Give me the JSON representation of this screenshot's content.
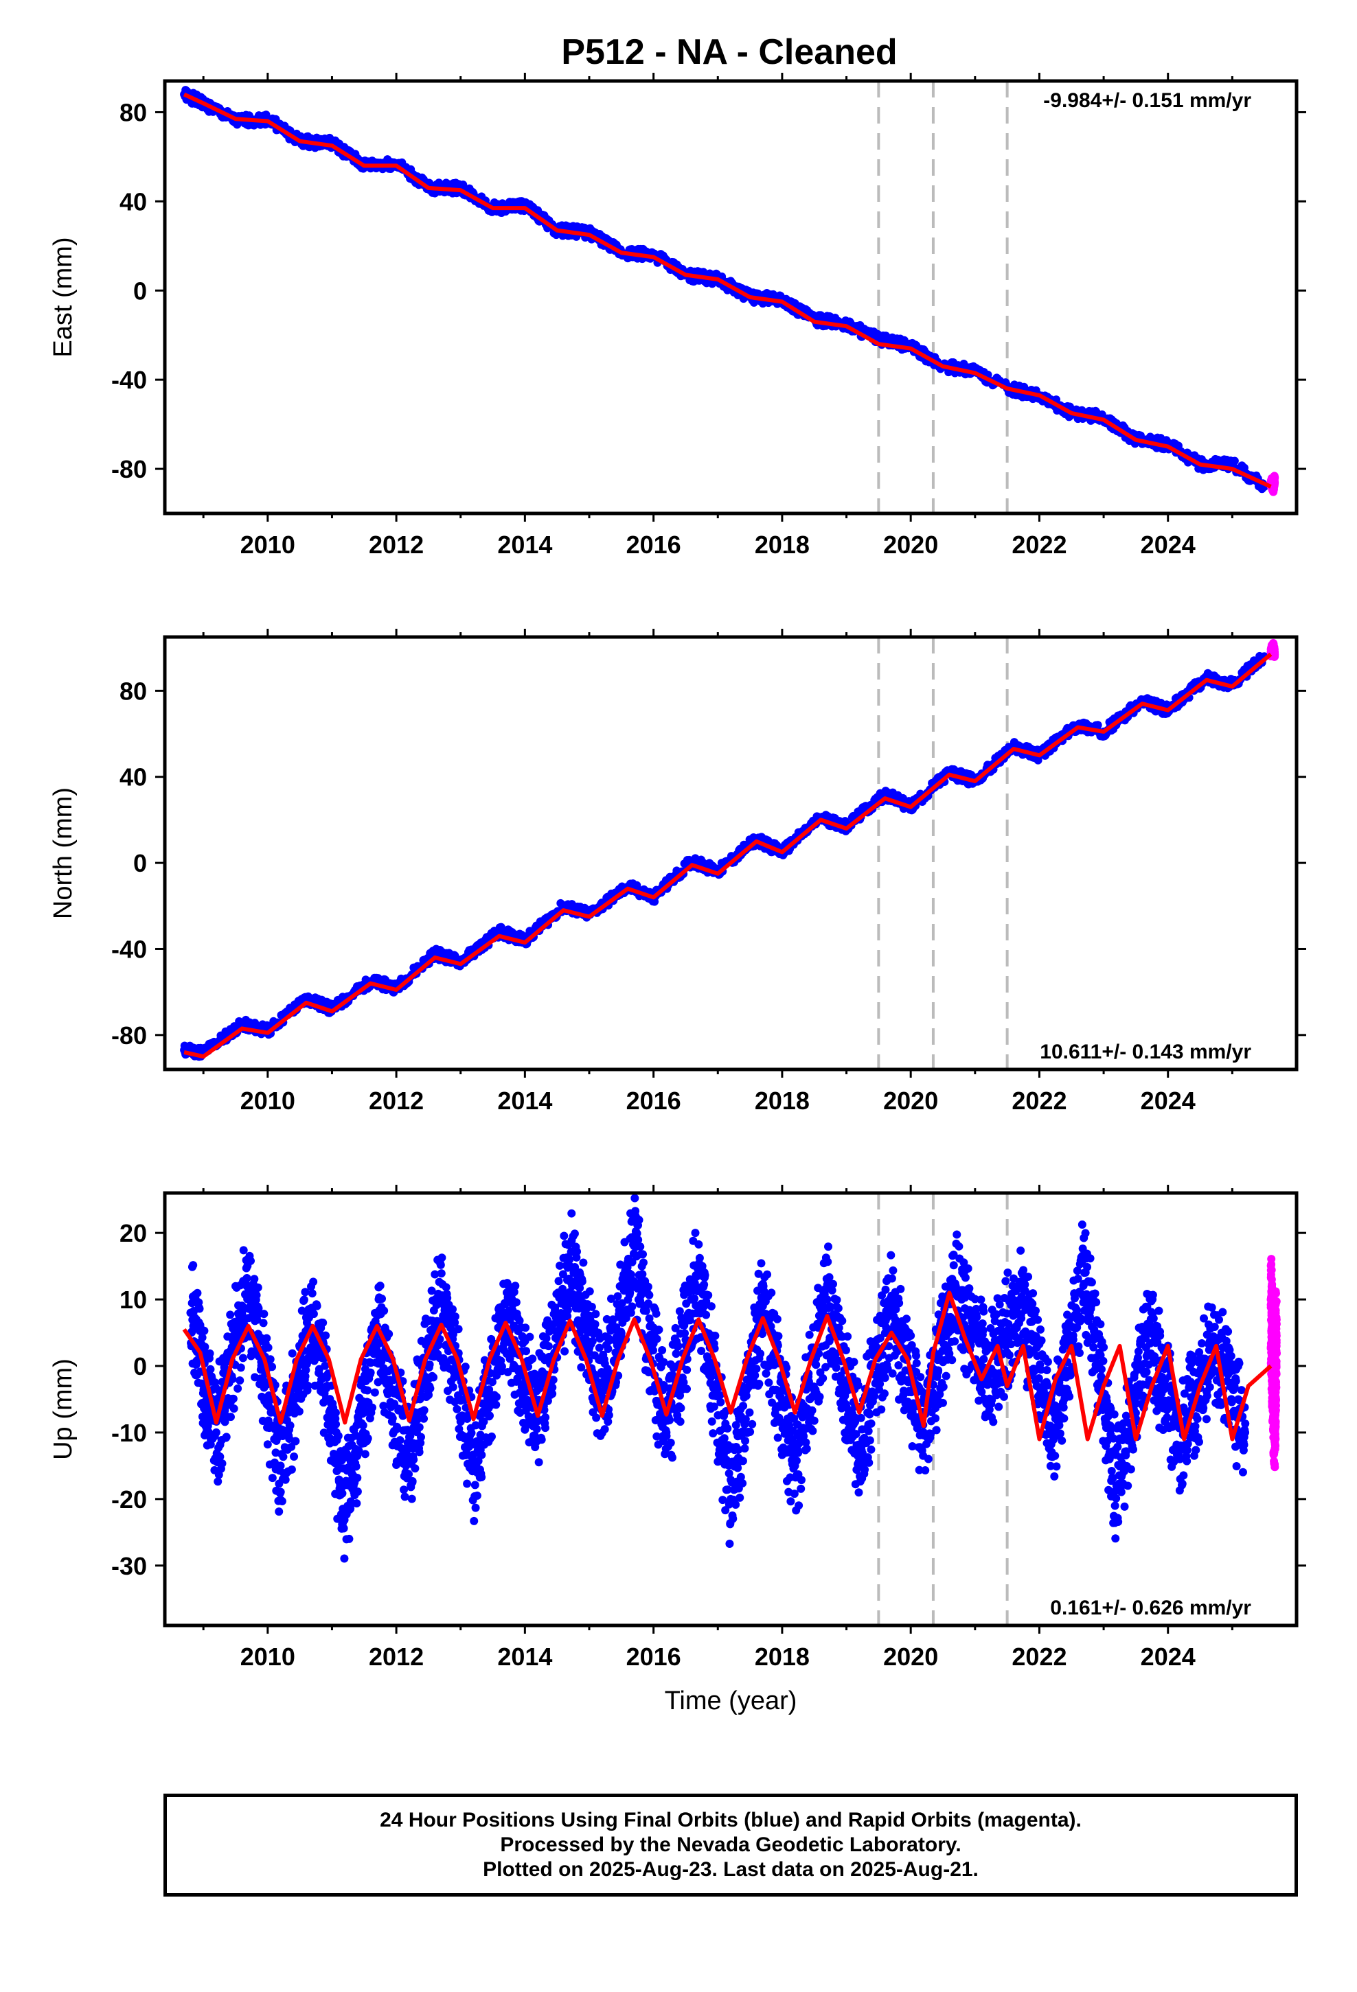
{
  "title": "P512  - NA - Cleaned",
  "colors": {
    "final_orbits": "#0000ff",
    "rapid_orbits": "#ff00ff",
    "model_fit": "#ff0000",
    "event_lines": "#bbbbbb",
    "frame": "#000000"
  },
  "chart_data": [
    {
      "type": "scatter",
      "panel": "east",
      "ylabel": "East (mm)",
      "xlabel": "",
      "xlim": [
        2008.4,
        2026.0
      ],
      "ylim": [
        -100,
        94
      ],
      "xticks": [
        2010,
        2012,
        2014,
        2016,
        2018,
        2020,
        2022,
        2024
      ],
      "yticks": [
        80,
        40,
        0,
        -40,
        -80
      ],
      "rate_label": "-9.984+/- 0.151 mm/yr",
      "rate_label_position": "top-right",
      "series": [
        {
          "name": "Final Orbits",
          "color": "blue",
          "x": [
            2008.7,
            2009.0,
            2009.5,
            2010.0,
            2010.5,
            2011.0,
            2011.5,
            2012.0,
            2012.5,
            2013.0,
            2013.5,
            2014.0,
            2014.5,
            2015.0,
            2015.5,
            2016.0,
            2016.5,
            2017.0,
            2017.5,
            2018.0,
            2018.5,
            2019.0,
            2019.5,
            2020.0,
            2020.5,
            2021.0,
            2021.5,
            2022.0,
            2022.5,
            2023.0,
            2023.5,
            2024.0,
            2024.5,
            2025.0,
            2025.5
          ],
          "y": [
            88,
            84,
            76,
            77,
            67,
            66,
            56,
            57,
            46,
            46,
            37,
            38,
            27,
            26,
            17,
            16,
            7,
            5,
            -3,
            -4,
            -13,
            -15,
            -22,
            -25,
            -34,
            -36,
            -44,
            -47,
            -55,
            -57,
            -67,
            -69,
            -78,
            -78,
            -88
          ]
        },
        {
          "name": "Rapid Orbits",
          "color": "magenta",
          "x": [
            2025.6,
            2025.64,
            2025.66
          ],
          "y": [
            -86,
            -88,
            -84
          ]
        }
      ],
      "fit": {
        "x": [
          2008.7,
          2009.0,
          2009.5,
          2010.0,
          2010.5,
          2011.0,
          2011.5,
          2012.0,
          2012.5,
          2013.0,
          2013.5,
          2014.0,
          2014.5,
          2015.0,
          2015.5,
          2016.0,
          2016.5,
          2017.0,
          2017.5,
          2018.0,
          2018.5,
          2019.0,
          2019.5,
          2020.0,
          2020.5,
          2021.0,
          2021.5,
          2022.0,
          2022.5,
          2023.0,
          2023.5,
          2024.0,
          2024.5,
          2025.0,
          2025.6
        ],
        "y": [
          88,
          84,
          77,
          76,
          67,
          65,
          56,
          56,
          46,
          45,
          37,
          37,
          27,
          25,
          17,
          15,
          7,
          5,
          -3,
          -5,
          -14,
          -16,
          -24,
          -26,
          -34,
          -37,
          -44,
          -47,
          -55,
          -58,
          -67,
          -70,
          -78,
          -80,
          -88
        ]
      },
      "event_lines": [
        2019.5,
        2020.35,
        2021.5
      ]
    },
    {
      "type": "scatter",
      "panel": "north",
      "ylabel": "North (mm)",
      "xlabel": "",
      "xlim": [
        2008.4,
        2026.0
      ],
      "ylim": [
        -96,
        105
      ],
      "xticks": [
        2010,
        2012,
        2014,
        2016,
        2018,
        2020,
        2022,
        2024
      ],
      "yticks": [
        80,
        40,
        0,
        -40,
        -80
      ],
      "rate_label": "10.611+/- 0.143 mm/yr",
      "rate_label_position": "bottom-right",
      "series": [
        {
          "name": "Final Orbits",
          "color": "blue",
          "x": [
            2008.7,
            2009.0,
            2009.6,
            2010.0,
            2010.6,
            2011.0,
            2011.6,
            2012.0,
            2012.6,
            2013.0,
            2013.6,
            2014.0,
            2014.6,
            2015.0,
            2015.6,
            2016.0,
            2016.6,
            2017.0,
            2017.6,
            2018.0,
            2018.6,
            2019.0,
            2019.6,
            2020.0,
            2020.6,
            2021.0,
            2021.6,
            2022.0,
            2022.6,
            2023.0,
            2023.6,
            2024.0,
            2024.6,
            2025.0,
            2025.5
          ],
          "y": [
            -87,
            -88,
            -75,
            -78,
            -63,
            -68,
            -55,
            -58,
            -42,
            -46,
            -32,
            -36,
            -20,
            -24,
            -11,
            -16,
            1,
            -4,
            11,
            5,
            21,
            17,
            32,
            26,
            42,
            38,
            54,
            50,
            64,
            61,
            75,
            71,
            86,
            83,
            96
          ]
        },
        {
          "name": "Rapid Orbits",
          "color": "magenta",
          "x": [
            2025.6,
            2025.64,
            2025.66
          ],
          "y": [
            98,
            100,
            97
          ]
        }
      ],
      "fit": {
        "x": [
          2008.7,
          2009.0,
          2009.6,
          2010.0,
          2010.6,
          2011.0,
          2011.6,
          2012.0,
          2012.6,
          2013.0,
          2013.6,
          2014.0,
          2014.6,
          2015.0,
          2015.6,
          2016.0,
          2016.6,
          2017.0,
          2017.6,
          2018.0,
          2018.6,
          2019.0,
          2019.6,
          2020.0,
          2020.6,
          2021.0,
          2021.6,
          2022.0,
          2022.6,
          2023.0,
          2023.6,
          2024.0,
          2024.6,
          2025.0,
          2025.6
        ],
        "y": [
          -88,
          -90,
          -77,
          -79,
          -65,
          -69,
          -56,
          -59,
          -44,
          -47,
          -34,
          -37,
          -22,
          -25,
          -12,
          -16,
          -1,
          -5,
          10,
          5,
          20,
          16,
          30,
          26,
          41,
          38,
          53,
          50,
          63,
          61,
          74,
          71,
          85,
          82,
          97
        ]
      },
      "event_lines": [
        2019.5,
        2020.35,
        2021.5
      ]
    },
    {
      "type": "scatter",
      "panel": "up",
      "ylabel": "Up (mm)",
      "xlabel": "Time (year)",
      "xlim": [
        2008.4,
        2026.0
      ],
      "ylim": [
        -39,
        26
      ],
      "xticks": [
        2010,
        2012,
        2014,
        2016,
        2018,
        2020,
        2022,
        2024
      ],
      "yticks": [
        20,
        10,
        0,
        -10,
        -20,
        -30
      ],
      "rate_label": "0.161+/- 0.626 mm/yr",
      "rate_label_position": "bottom-right",
      "series": [
        {
          "name": "Final Orbits",
          "color": "blue",
          "x": [
            2008.8,
            2009.2,
            2009.7,
            2010.2,
            2010.7,
            2011.2,
            2011.7,
            2012.2,
            2012.7,
            2013.2,
            2013.7,
            2014.2,
            2014.7,
            2015.2,
            2015.7,
            2016.2,
            2016.7,
            2017.2,
            2017.7,
            2018.2,
            2018.7,
            2019.2,
            2019.7,
            2020.2,
            2020.7,
            2021.2,
            2021.7,
            2022.2,
            2022.7,
            2023.2,
            2023.7,
            2024.2,
            2024.7,
            2025.2
          ],
          "y": [
            8,
            -10,
            12,
            -15,
            8,
            -22,
            6,
            -14,
            10,
            -15,
            8,
            -8,
            15,
            -5,
            18,
            -10,
            14,
            -20,
            9,
            -15,
            10,
            -12,
            8,
            -10,
            12,
            -2,
            10,
            -10,
            14,
            -18,
            5,
            -12,
            4,
            -10
          ]
        },
        {
          "name": "Rapid Orbits",
          "color": "magenta",
          "x": [
            2025.6,
            2025.62,
            2025.64,
            2025.66,
            2025.68
          ],
          "y": [
            10,
            2,
            -4,
            -8,
            6
          ]
        }
      ],
      "fit": {
        "x": [
          2008.7,
          2008.95,
          2009.2,
          2009.45,
          2009.7,
          2009.95,
          2010.2,
          2010.45,
          2010.7,
          2010.95,
          2011.2,
          2011.45,
          2011.7,
          2011.95,
          2012.2,
          2012.45,
          2012.7,
          2012.95,
          2013.2,
          2013.45,
          2013.7,
          2013.95,
          2014.2,
          2014.45,
          2014.7,
          2014.95,
          2015.2,
          2015.45,
          2015.7,
          2015.95,
          2016.2,
          2016.45,
          2016.7,
          2016.95,
          2017.2,
          2017.45,
          2017.7,
          2017.95,
          2018.2,
          2018.45,
          2018.7,
          2018.95,
          2019.2,
          2019.45,
          2019.7,
          2019.95,
          2020.2,
          2020.35,
          2020.6,
          2020.85,
          2021.1,
          2021.35,
          2021.5,
          2021.75,
          2022.0,
          2022.25,
          2022.5,
          2022.75,
          2023.0,
          2023.25,
          2023.5,
          2023.75,
          2024.0,
          2024.25,
          2024.5,
          2024.75,
          2025.0,
          2025.25,
          2025.6
        ],
        "y": [
          5.5,
          2,
          -8.5,
          1,
          6,
          1,
          -8.5,
          1,
          6,
          1,
          -8.5,
          1,
          6,
          1,
          -8.2,
          1,
          6.2,
          1,
          -8,
          1,
          6.5,
          1,
          -7.5,
          1,
          6.8,
          1,
          -7.5,
          1,
          7,
          1,
          -7.3,
          1,
          7,
          1,
          -7,
          1,
          7.2,
          1,
          -7,
          1,
          7.5,
          1,
          -7,
          1,
          5,
          1,
          -9,
          2,
          11,
          4,
          -2,
          3,
          -3,
          3,
          -11,
          -2,
          3,
          -11,
          -3,
          3,
          -11,
          -3,
          3,
          -11,
          -3,
          3,
          -11,
          -3,
          0
        ]
      },
      "event_lines": [
        2019.5,
        2020.35,
        2021.5
      ]
    }
  ],
  "footer": {
    "line1": "24 Hour Positions Using Final Orbits (blue) and Rapid Orbits (magenta).",
    "line2": "Processed by the Nevada Geodetic Laboratory.",
    "line3": "Plotted on 2025-Aug-23. Last data on 2025-Aug-21."
  }
}
